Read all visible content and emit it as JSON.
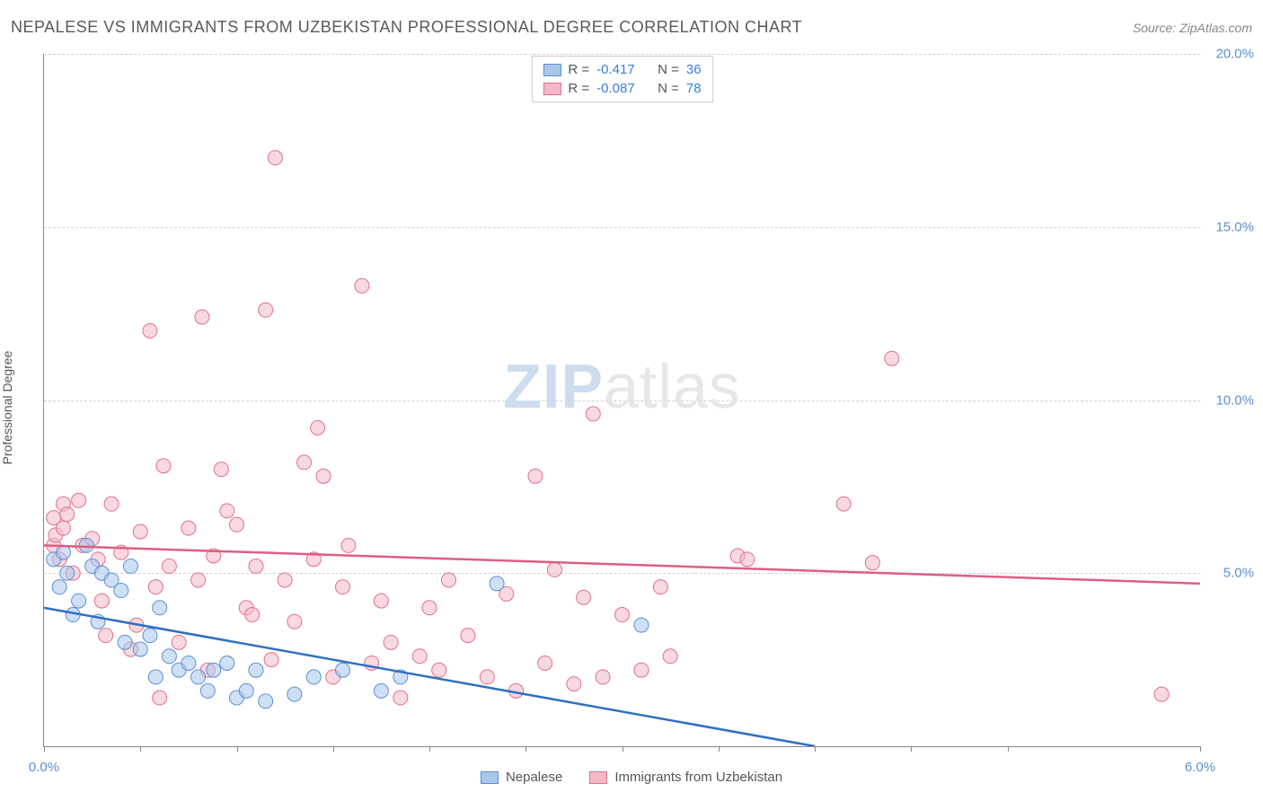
{
  "header": {
    "title": "NEPALESE VS IMMIGRANTS FROM UZBEKISTAN PROFESSIONAL DEGREE CORRELATION CHART",
    "source": "Source: ZipAtlas.com"
  },
  "y_axis": {
    "label": "Professional Degree"
  },
  "watermark": {
    "zip": "ZIP",
    "atlas": "atlas"
  },
  "chart": {
    "type": "scatter",
    "xlim": [
      0.0,
      6.0
    ],
    "ylim": [
      0.0,
      20.0
    ],
    "x_ticks": [
      0.0,
      0.5,
      1.0,
      1.5,
      2.0,
      2.5,
      3.0,
      3.5,
      4.0,
      4.5,
      5.0,
      6.0
    ],
    "x_tick_labels": {
      "0": "0.0%",
      "6": "6.0%"
    },
    "y_grid": [
      5.0,
      10.0,
      15.0,
      20.0
    ],
    "y_tick_labels": {
      "5": "5.0%",
      "10": "10.0%",
      "15": "15.0%",
      "20": "20.0%"
    },
    "grid_color": "#d0d0d0",
    "axis_color": "#888888",
    "background_color": "#ffffff",
    "marker_radius": 8,
    "marker_opacity": 0.55,
    "series": [
      {
        "name": "Nepalese",
        "fill": "#a9c7eb",
        "stroke": "#5b8fd6",
        "line_color": "#2f6fc4",
        "legend_label": "Nepalese",
        "R": "-0.417",
        "N": "36",
        "trend": {
          "x1": 0.0,
          "y1": 4.0,
          "x2": 4.0,
          "y2": 0.0
        },
        "points": [
          [
            0.05,
            5.4
          ],
          [
            0.08,
            4.6
          ],
          [
            0.1,
            5.6
          ],
          [
            0.12,
            5.0
          ],
          [
            0.15,
            3.8
          ],
          [
            0.18,
            4.2
          ],
          [
            0.25,
            5.2
          ],
          [
            0.28,
            3.6
          ],
          [
            0.3,
            5.0
          ],
          [
            0.35,
            4.8
          ],
          [
            0.4,
            4.5
          ],
          [
            0.42,
            3.0
          ],
          [
            0.45,
            5.2
          ],
          [
            0.5,
            2.8
          ],
          [
            0.55,
            3.2
          ],
          [
            0.58,
            2.0
          ],
          [
            0.6,
            4.0
          ],
          [
            0.65,
            2.6
          ],
          [
            0.7,
            2.2
          ],
          [
            0.75,
            2.4
          ],
          [
            0.8,
            2.0
          ],
          [
            0.85,
            1.6
          ],
          [
            0.88,
            2.2
          ],
          [
            0.95,
            2.4
          ],
          [
            1.0,
            1.4
          ],
          [
            1.05,
            1.6
          ],
          [
            1.1,
            2.2
          ],
          [
            1.15,
            1.3
          ],
          [
            1.3,
            1.5
          ],
          [
            1.4,
            2.0
          ],
          [
            1.55,
            2.2
          ],
          [
            1.75,
            1.6
          ],
          [
            1.85,
            2.0
          ],
          [
            2.35,
            4.7
          ],
          [
            3.1,
            3.5
          ],
          [
            0.22,
            5.8
          ]
        ]
      },
      {
        "name": "Immigrants from Uzbekistan",
        "fill": "#f3b9c6",
        "stroke": "#e26f8b",
        "line_color": "#de5e82",
        "legend_label": "Immigrants from Uzbekistan",
        "R": "-0.087",
        "N": "78",
        "trend": {
          "x1": 0.0,
          "y1": 5.8,
          "x2": 6.0,
          "y2": 4.7
        },
        "points": [
          [
            0.05,
            6.6
          ],
          [
            0.05,
            5.8
          ],
          [
            0.06,
            6.1
          ],
          [
            0.08,
            5.4
          ],
          [
            0.1,
            6.3
          ],
          [
            0.1,
            7.0
          ],
          [
            0.12,
            6.7
          ],
          [
            0.15,
            5.0
          ],
          [
            0.18,
            7.1
          ],
          [
            0.2,
            5.8
          ],
          [
            0.25,
            6.0
          ],
          [
            0.28,
            5.4
          ],
          [
            0.3,
            4.2
          ],
          [
            0.35,
            7.0
          ],
          [
            0.4,
            5.6
          ],
          [
            0.45,
            2.8
          ],
          [
            0.48,
            3.5
          ],
          [
            0.5,
            6.2
          ],
          [
            0.55,
            12.0
          ],
          [
            0.58,
            4.6
          ],
          [
            0.6,
            1.4
          ],
          [
            0.62,
            8.1
          ],
          [
            0.65,
            5.2
          ],
          [
            0.7,
            3.0
          ],
          [
            0.75,
            6.3
          ],
          [
            0.8,
            4.8
          ],
          [
            0.82,
            12.4
          ],
          [
            0.85,
            2.2
          ],
          [
            0.88,
            5.5
          ],
          [
            0.92,
            8.0
          ],
          [
            1.0,
            6.4
          ],
          [
            1.05,
            4.0
          ],
          [
            1.1,
            5.2
          ],
          [
            1.15,
            12.6
          ],
          [
            1.18,
            2.5
          ],
          [
            1.2,
            17.0
          ],
          [
            1.25,
            4.8
          ],
          [
            1.3,
            3.6
          ],
          [
            1.35,
            8.2
          ],
          [
            1.4,
            5.4
          ],
          [
            1.42,
            9.2
          ],
          [
            1.45,
            7.8
          ],
          [
            1.5,
            2.0
          ],
          [
            1.55,
            4.6
          ],
          [
            1.58,
            5.8
          ],
          [
            1.65,
            13.3
          ],
          [
            1.7,
            2.4
          ],
          [
            1.75,
            4.2
          ],
          [
            1.8,
            3.0
          ],
          [
            1.85,
            1.4
          ],
          [
            1.95,
            2.6
          ],
          [
            2.0,
            4.0
          ],
          [
            2.05,
            2.2
          ],
          [
            2.1,
            4.8
          ],
          [
            2.2,
            3.2
          ],
          [
            2.3,
            2.0
          ],
          [
            2.4,
            4.4
          ],
          [
            2.55,
            7.8
          ],
          [
            2.6,
            2.4
          ],
          [
            2.65,
            5.1
          ],
          [
            2.75,
            1.8
          ],
          [
            2.8,
            4.3
          ],
          [
            2.85,
            9.6
          ],
          [
            2.9,
            2.0
          ],
          [
            3.0,
            3.8
          ],
          [
            3.1,
            2.2
          ],
          [
            3.2,
            4.6
          ],
          [
            3.25,
            2.6
          ],
          [
            3.6,
            5.5
          ],
          [
            3.65,
            5.4
          ],
          [
            4.15,
            7.0
          ],
          [
            4.3,
            5.3
          ],
          [
            4.4,
            11.2
          ],
          [
            5.8,
            1.5
          ],
          [
            0.32,
            3.2
          ],
          [
            0.95,
            6.8
          ],
          [
            1.08,
            3.8
          ],
          [
            2.45,
            1.6
          ]
        ]
      }
    ]
  },
  "legend_top": {
    "rows": [
      {
        "swatch_fill": "#a9c7eb",
        "swatch_stroke": "#5b8fd6",
        "r_label": "R =",
        "r_value": "-0.417",
        "n_label": "N =",
        "n_value": "36"
      },
      {
        "swatch_fill": "#f3b9c6",
        "swatch_stroke": "#e26f8b",
        "r_label": "R =",
        "r_value": "-0.087",
        "n_label": "N =",
        "n_value": "78"
      }
    ]
  },
  "legend_bottom": {
    "items": [
      {
        "swatch_fill": "#a9c7eb",
        "swatch_stroke": "#5b8fd6",
        "label": "Nepalese"
      },
      {
        "swatch_fill": "#f3b9c6",
        "swatch_stroke": "#e26f8b",
        "label": "Immigrants from Uzbekistan"
      }
    ]
  }
}
